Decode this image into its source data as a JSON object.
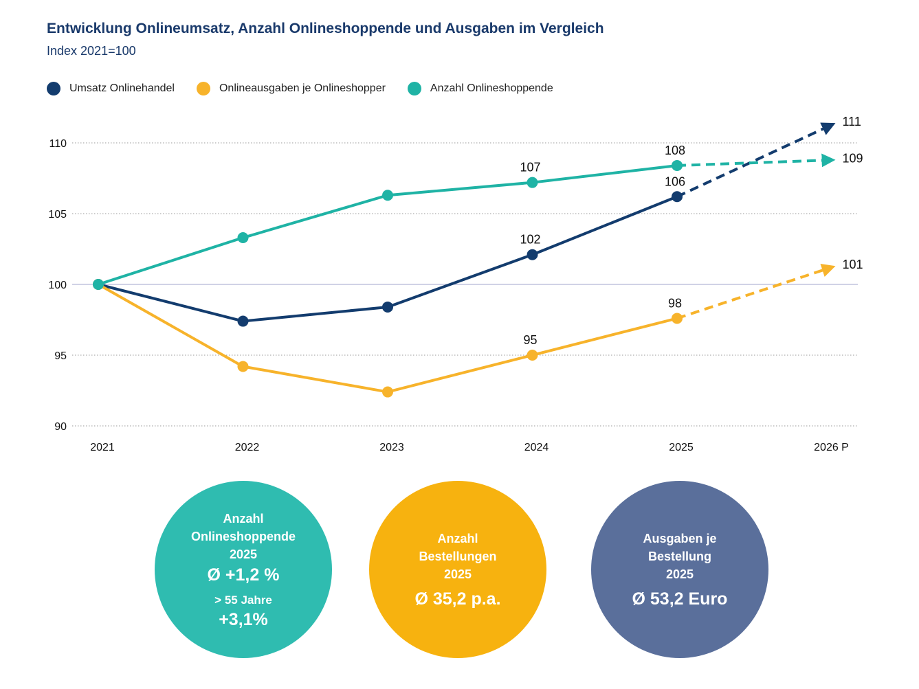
{
  "title": "Entwicklung Onlineumsatz, Anzahl Onlineshoppende und Ausgaben im Vergleich",
  "subtitle": "Index 2021=100",
  "colors": {
    "navy": "#133c6e",
    "orange": "#f7b32b",
    "teal": "#1fb3a5",
    "grid": "#9a9a9a",
    "baseline": "#b4b6d8"
  },
  "legend": [
    {
      "label": "Umsatz Onlinehandel",
      "color": "#133c6e"
    },
    {
      "label": "Onlineausgaben je Onlineshopper",
      "color": "#f7b32b"
    },
    {
      "label": "Anzahl Onlineshoppende",
      "color": "#1fb3a5"
    }
  ],
  "chart_data": {
    "type": "line",
    "categories": [
      "2021",
      "2022",
      "2023",
      "2024",
      "2025",
      "2026 P"
    ],
    "y_ticks": [
      90,
      95,
      100,
      105,
      110
    ],
    "ylim": [
      90,
      110
    ],
    "grid": "dotted horizontal",
    "series": [
      {
        "name": "Umsatz Onlinehandel",
        "color": "#133c6e",
        "values": [
          100,
          97.4,
          98.4,
          102.1,
          106.2,
          111.4
        ],
        "labels": [
          "",
          "",
          "",
          "102",
          "106",
          "111"
        ],
        "projected_from": 4
      },
      {
        "name": "Onlineausgaben je Onlineshopper",
        "color": "#f7b32b",
        "values": [
          100,
          94.2,
          92.4,
          95.0,
          97.6,
          101.3
        ],
        "labels": [
          "",
          "",
          "",
          "95",
          "98",
          "101"
        ],
        "projected_from": 4
      },
      {
        "name": "Anzahl Onlineshoppende",
        "color": "#1fb3a5",
        "values": [
          100,
          103.3,
          106.3,
          107.2,
          108.4,
          108.8
        ],
        "labels": [
          "",
          "",
          "",
          "107",
          "108",
          "109"
        ],
        "projected_from": 4
      }
    ]
  },
  "bubbles": [
    {
      "lines": [
        "Anzahl",
        "Onlineshoppende",
        "2025"
      ],
      "value": "Ø +1,2 %",
      "sub": "> 55 Jahre",
      "subvalue": "+3,1%",
      "color": "#2fbcb0"
    },
    {
      "lines": [
        "Anzahl",
        "Bestellungen",
        "2025"
      ],
      "value": "Ø 35,2 p.a.",
      "color": "#f7b20f"
    },
    {
      "lines": [
        "Ausgaben je",
        "Bestellung",
        "2025"
      ],
      "value": "Ø 53,2 Euro",
      "color": "#5a6f9b"
    }
  ]
}
